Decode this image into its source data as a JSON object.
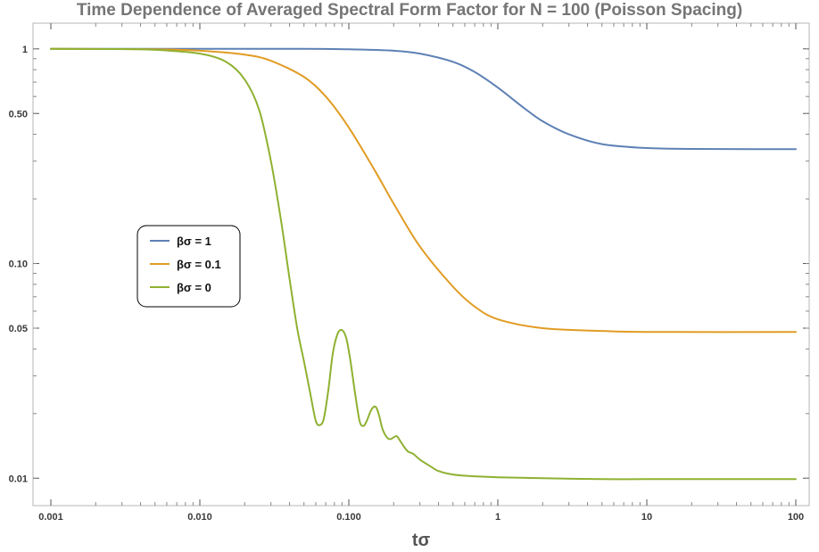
{
  "chart_data": {
    "type": "line",
    "title": "Time Dependence of Averaged Spectral Form Factor for N = 100 (Poisson Spacing)",
    "xlabel": "tσ",
    "ylabel": "",
    "x_scale": "log",
    "y_scale": "log",
    "xlim": [
      0.001,
      100
    ],
    "ylim": [
      0.0082,
      1.22
    ],
    "x_ticks": [
      {
        "value": 0.001,
        "label": "0.001"
      },
      {
        "value": 0.01,
        "label": "0.010"
      },
      {
        "value": 0.1,
        "label": "0.100"
      },
      {
        "value": 1,
        "label": "1"
      },
      {
        "value": 10,
        "label": "10"
      },
      {
        "value": 100,
        "label": "100"
      }
    ],
    "y_ticks": [
      {
        "value": 0.01,
        "label": "0.01"
      },
      {
        "value": 0.05,
        "label": "0.05"
      },
      {
        "value": 0.1,
        "label": "0.10"
      },
      {
        "value": 0.5,
        "label": "0.50"
      },
      {
        "value": 1,
        "label": "1"
      }
    ],
    "grid": false,
    "legend_position": "left-center",
    "series": [
      {
        "name": "βσ = 1",
        "color": "#5E81B5",
        "x": [
          0.001,
          0.01,
          0.05,
          0.1,
          0.2,
          0.3,
          0.5,
          0.7,
          1.0,
          1.5,
          2.0,
          3.0,
          5.0,
          10,
          20,
          50,
          100
        ],
        "y": [
          1.0,
          1.0,
          1.0,
          0.995,
          0.98,
          0.95,
          0.87,
          0.78,
          0.66,
          0.53,
          0.46,
          0.4,
          0.36,
          0.345,
          0.342,
          0.341,
          0.341
        ]
      },
      {
        "name": "βσ = 0.1",
        "color": "#E19C24",
        "x": [
          0.001,
          0.005,
          0.01,
          0.02,
          0.03,
          0.05,
          0.07,
          0.1,
          0.15,
          0.2,
          0.3,
          0.5,
          0.7,
          1.0,
          2.0,
          5.0,
          10,
          100
        ],
        "y": [
          1.0,
          0.995,
          0.98,
          0.94,
          0.88,
          0.74,
          0.6,
          0.43,
          0.27,
          0.19,
          0.12,
          0.078,
          0.063,
          0.055,
          0.05,
          0.0485,
          0.048,
          0.048
        ]
      },
      {
        "name": "βσ = 0",
        "color": "#8FB131",
        "x": [
          0.001,
          0.003,
          0.005,
          0.01,
          0.015,
          0.02,
          0.025,
          0.03,
          0.035,
          0.04,
          0.045,
          0.05,
          0.055,
          0.06,
          0.064,
          0.068,
          0.073,
          0.078,
          0.084,
          0.09,
          0.096,
          0.102,
          0.11,
          0.118,
          0.125,
          0.132,
          0.14,
          0.147,
          0.153,
          0.16,
          0.168,
          0.18,
          0.19,
          0.2,
          0.21,
          0.22,
          0.235,
          0.25,
          0.27,
          0.3,
          0.35,
          0.4,
          0.5,
          0.7,
          1.0,
          2.0,
          5.0,
          10,
          30,
          100
        ],
        "y": [
          1.0,
          0.998,
          0.99,
          0.95,
          0.87,
          0.72,
          0.52,
          0.3,
          0.16,
          0.085,
          0.05,
          0.035,
          0.025,
          0.0185,
          0.0177,
          0.019,
          0.026,
          0.038,
          0.047,
          0.049,
          0.045,
          0.036,
          0.025,
          0.0185,
          0.0175,
          0.0185,
          0.0205,
          0.0215,
          0.0213,
          0.0195,
          0.017,
          0.0155,
          0.0152,
          0.0155,
          0.0157,
          0.015,
          0.014,
          0.0133,
          0.013,
          0.0122,
          0.0114,
          0.0108,
          0.0104,
          0.0102,
          0.0101,
          0.01,
          0.0099,
          0.0099,
          0.0099,
          0.0099
        ]
      }
    ]
  }
}
